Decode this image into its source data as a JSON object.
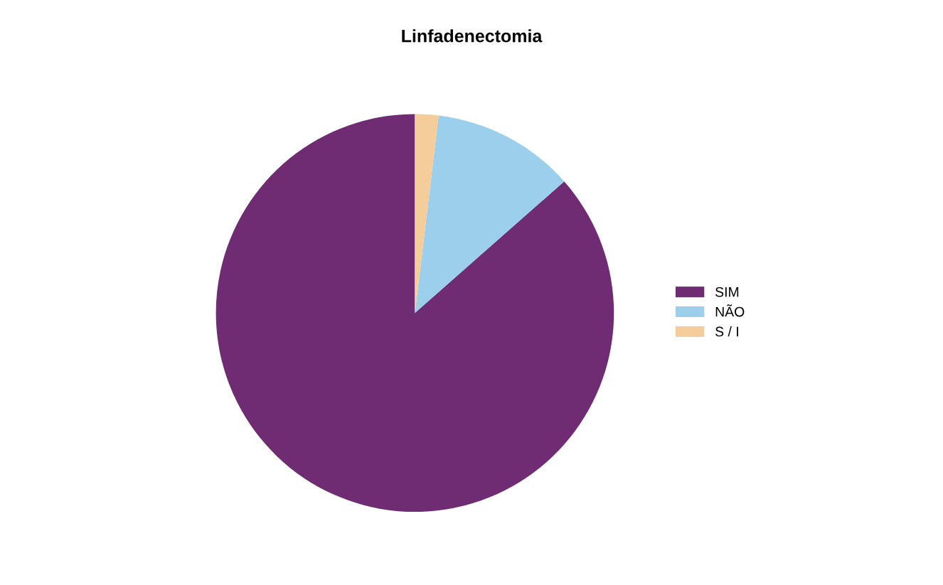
{
  "chart_data": {
    "type": "pie",
    "title": "Linfadenectomia",
    "categories": [
      "SIM",
      "NÃO",
      "S / I"
    ],
    "values": [
      86.5,
      11.6,
      1.9
    ],
    "colors": [
      "#6f2c73",
      "#9ccfec",
      "#f5cd9a"
    ],
    "legend": "right"
  }
}
